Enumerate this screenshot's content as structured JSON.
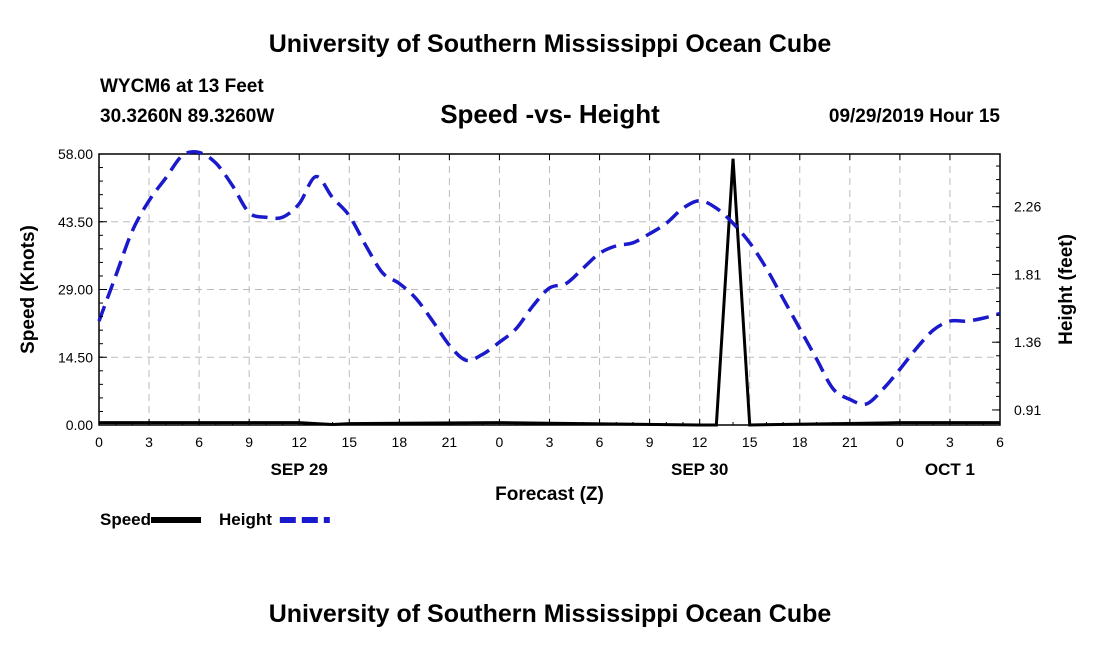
{
  "header": {
    "title_top": "University of Southern Mississippi Ocean Cube",
    "title_bottom": "University of Southern Mississippi Ocean Cube",
    "station": "WYCM6 at 13 Feet",
    "coords": "30.3260N 89.3260W",
    "datetime": "09/29/2019 Hour 15"
  },
  "chart_data": {
    "type": "line",
    "title": "Speed -vs- Height",
    "xlabel": "Forecast (Z)",
    "ylabel": "Speed (Knots)",
    "y2label": "Height (feet)",
    "x_range": [
      0,
      54
    ],
    "ylim": [
      0,
      58
    ],
    "y2lim": [
      0.81,
      2.61
    ],
    "x_ticks": [
      0,
      3,
      6,
      9,
      12,
      15,
      18,
      21,
      24,
      27,
      30,
      33,
      36,
      39,
      42,
      45,
      48,
      51,
      54
    ],
    "x_tick_labels": [
      "0",
      "3",
      "6",
      "9",
      "12",
      "15",
      "18",
      "21",
      "0",
      "3",
      "6",
      "9",
      "12",
      "15",
      "18",
      "21",
      "0",
      "3",
      "6"
    ],
    "date_labels": [
      {
        "x": 12,
        "label": "SEP 29"
      },
      {
        "x": 36,
        "label": "SEP 30"
      },
      {
        "x": 51,
        "label": "OCT 1"
      }
    ],
    "y_ticks": [
      0,
      14.5,
      29,
      43.5,
      58
    ],
    "y_tick_labels": [
      "0.00",
      "14.50",
      "29.00",
      "43.50",
      "58.00"
    ],
    "y2_ticks": [
      0.91,
      1.36,
      1.81,
      2.26
    ],
    "y2_tick_labels": [
      "0.91",
      "1.36",
      "1.81",
      "2.26"
    ],
    "grid": true,
    "series": [
      {
        "name": "Speed",
        "axis": "left",
        "color": "#000000",
        "style": "solid",
        "x": [
          0,
          12,
          13,
          14,
          15,
          24,
          36,
          37,
          38,
          39,
          48,
          54
        ],
        "y": [
          0.5,
          0.5,
          0.3,
          0.1,
          0.3,
          0.5,
          0,
          0,
          57,
          0,
          0.5,
          0.5
        ]
      },
      {
        "name": "Height",
        "axis": "right",
        "color": "#1a1acc",
        "style": "dashed",
        "x": [
          0,
          1,
          2,
          3,
          4,
          5,
          6,
          7,
          8,
          9,
          10,
          11,
          12,
          13,
          14,
          15,
          16,
          17,
          18,
          19,
          20,
          21,
          22,
          23,
          24,
          25,
          26,
          27,
          28,
          29,
          30,
          31,
          32,
          33,
          34,
          35,
          36,
          37,
          38,
          39,
          40,
          41,
          42,
          43,
          44,
          45,
          46,
          47,
          48,
          49,
          50,
          51,
          52,
          53,
          54
        ],
        "y": [
          1.5,
          1.8,
          2.1,
          2.3,
          2.45,
          2.6,
          2.62,
          2.55,
          2.4,
          2.22,
          2.19,
          2.19,
          2.28,
          2.46,
          2.32,
          2.2,
          2.0,
          1.82,
          1.75,
          1.65,
          1.5,
          1.34,
          1.24,
          1.28,
          1.36,
          1.45,
          1.6,
          1.72,
          1.75,
          1.85,
          1.95,
          2.0,
          2.02,
          2.08,
          2.15,
          2.25,
          2.3,
          2.25,
          2.15,
          2.02,
          1.85,
          1.65,
          1.45,
          1.25,
          1.05,
          0.98,
          0.95,
          1.05,
          1.18,
          1.32,
          1.44,
          1.5,
          1.5,
          1.52,
          1.55
        ]
      }
    ],
    "legend": [
      {
        "label": "Speed",
        "color": "#000000",
        "style": "solid"
      },
      {
        "label": "Height",
        "color": "#1a1acc",
        "style": "dashed"
      }
    ]
  }
}
